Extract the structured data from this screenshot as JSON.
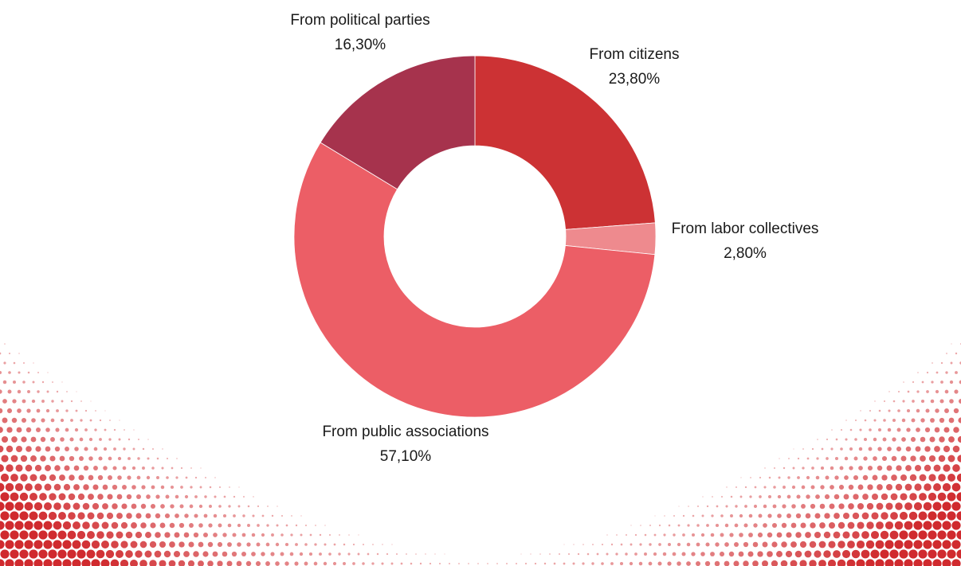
{
  "chart_data": {
    "type": "pie",
    "variant": "donut",
    "title": "",
    "categories": [
      "From citizens",
      "From labor collectives",
      "From public associations",
      "From political parties"
    ],
    "values": [
      23.8,
      2.8,
      57.1,
      16.3
    ],
    "value_labels": [
      "23,80%",
      "2,80%",
      "57,10%",
      "16,30%"
    ],
    "unit": "%",
    "colors": [
      "#cc3234",
      "#ee8a8e",
      "#ec5e66",
      "#a6334d"
    ],
    "start_angle": "12 o'clock",
    "direction": "clockwise",
    "legend": "none",
    "data_labels": "outside, category name above percentage"
  },
  "background": {
    "decoration": "red halftone dot pattern in bottom corners",
    "dot_color": "#d02a2e"
  }
}
